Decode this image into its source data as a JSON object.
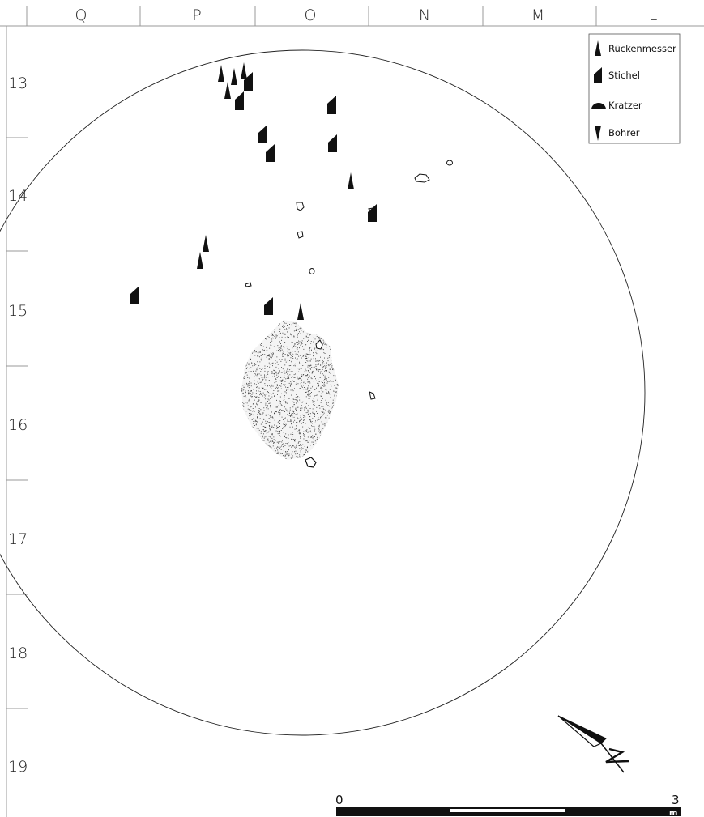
{
  "grid": {
    "columns": [
      "Q",
      "P",
      "O",
      "N",
      "M",
      "L"
    ],
    "rows": [
      "13",
      "14",
      "15",
      "16",
      "17",
      "18",
      "19"
    ]
  },
  "legend": {
    "items": [
      {
        "key": "rueckenmesser",
        "label": "Rückenmesser",
        "icon": "backed-blade-triangle-icon"
      },
      {
        "key": "stichel",
        "label": "Stichel",
        "icon": "burin-trapezoid-icon"
      },
      {
        "key": "kratzer",
        "label": "Kratzer",
        "icon": "scraper-semicircle-icon"
      },
      {
        "key": "bohrer",
        "label": "Bohrer",
        "icon": "borer-inverted-triangle-icon"
      }
    ]
  },
  "scale": {
    "start_label": "0",
    "end_label": "3",
    "unit": "m"
  },
  "colors": {
    "ink": "#111111",
    "grid": "#999999",
    "background": "#ffffff",
    "hearth_stipple": "#333333"
  },
  "north_arrow": {
    "letter": "N",
    "icon": "north-arrow-icon"
  }
}
